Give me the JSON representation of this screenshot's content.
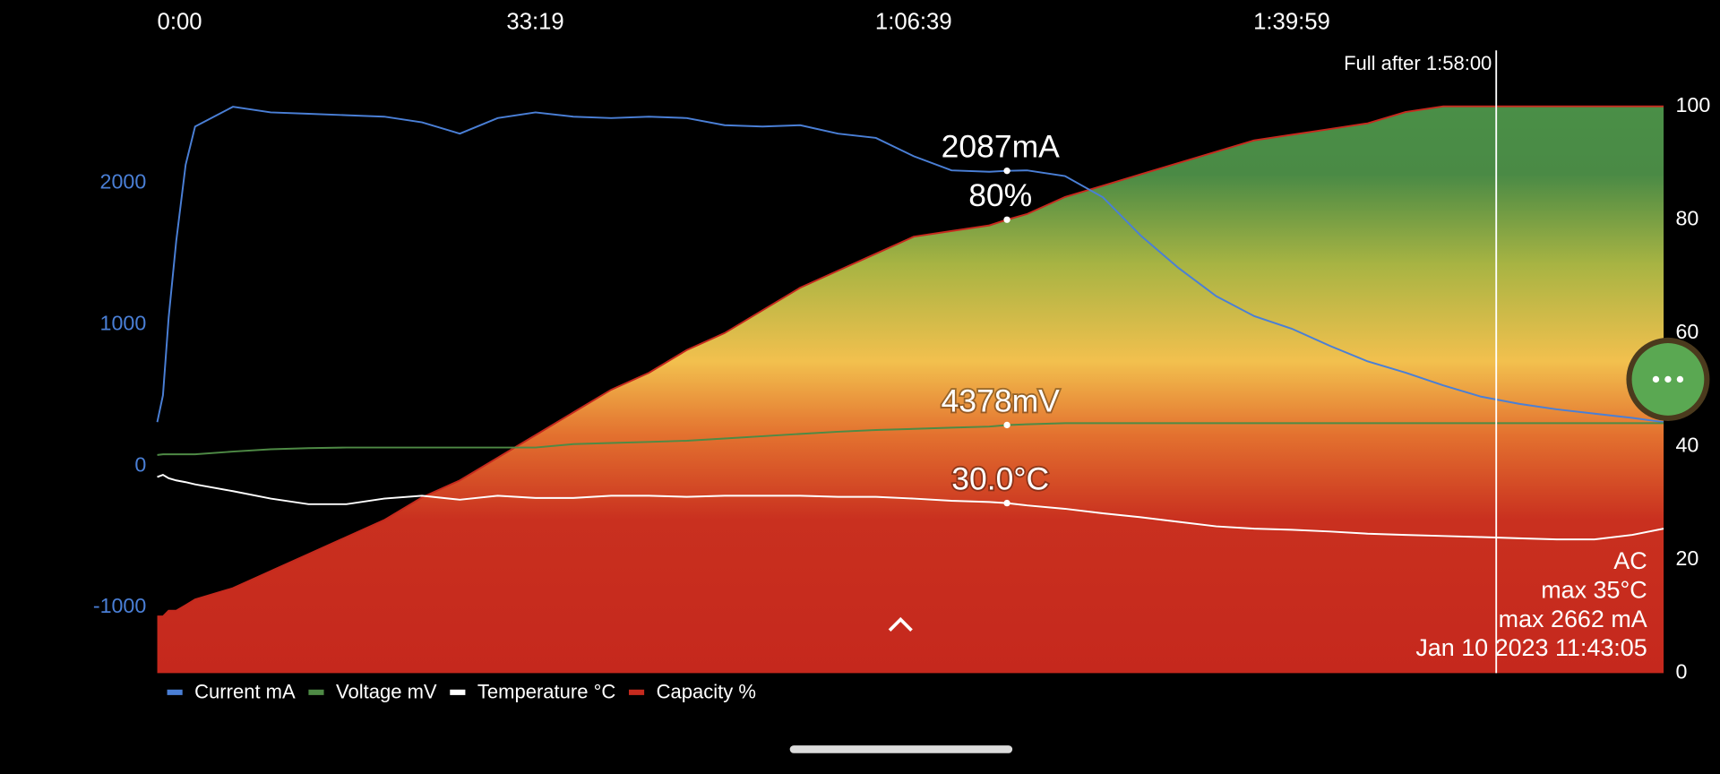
{
  "chart_data": {
    "type": "line",
    "x": [
      0,
      30,
      60,
      100,
      150,
      200,
      400,
      600,
      800,
      1000,
      1200,
      1400,
      1600,
      1800,
      2000,
      2200,
      2400,
      2600,
      2800,
      3000,
      3200,
      3400,
      3600,
      3800,
      4000,
      4200,
      4400,
      4493,
      4600,
      4800,
      5000,
      5200,
      5400,
      5600,
      5800,
      6000,
      6200,
      6400,
      6600,
      6800,
      7000,
      7200,
      7400,
      7600,
      7800,
      7965
    ],
    "xlim": [
      0,
      7965
    ],
    "xticks": [
      {
        "value": 0,
        "label": "0:00"
      },
      {
        "value": 1999,
        "label": "33:19"
      },
      {
        "value": 3999,
        "label": "1:06:39"
      },
      {
        "value": 5999,
        "label": "1:39:59"
      }
    ],
    "ylim": [
      -1465,
      2543
    ],
    "yticks": [
      -1000,
      0,
      1000,
      2000
    ],
    "y2lim": [
      0,
      100
    ],
    "y2ticks": [
      0,
      20,
      40,
      60,
      80,
      100
    ],
    "y_tick_color": "#4a7fd6",
    "series": [
      {
        "name": "Current mA",
        "color": "#4a7fd6",
        "marker_label": "2087mA",
        "values": [
          310,
          500,
          1050,
          1590,
          2130,
          2400,
          2540,
          2500,
          2490,
          2480,
          2470,
          2430,
          2350,
          2460,
          2500,
          2470,
          2460,
          2470,
          2460,
          2410,
          2400,
          2410,
          2350,
          2320,
          2190,
          2090,
          2080,
          2087,
          2090,
          2050,
          1900,
          1630,
          1400,
          1200,
          1060,
          970,
          850,
          740,
          660,
          570,
          490,
          440,
          400,
          370,
          340,
          310
        ]
      },
      {
        "name": "Voltage mV",
        "color": "#4e8a45",
        "ylim": [
          0,
          10000
        ],
        "marker_label": "4378mV",
        "values": [
          3850,
          3860,
          3860,
          3860,
          3860,
          3860,
          3910,
          3950,
          3970,
          3980,
          3980,
          3980,
          3980,
          3980,
          3980,
          4040,
          4060,
          4080,
          4100,
          4140,
          4180,
          4220,
          4260,
          4290,
          4310,
          4330,
          4350,
          4378,
          4390,
          4410,
          4410,
          4410,
          4410,
          4410,
          4410,
          4410,
          4410,
          4410,
          4410,
          4410,
          4410,
          4410,
          4410,
          4410,
          4410,
          4410
        ]
      },
      {
        "name": "Temperature °C",
        "color": "#ffffff",
        "axis": "y2",
        "marker_label": "30.0°C",
        "values": [
          34.6,
          35.0,
          34.4,
          34.0,
          33.7,
          33.3,
          32.1,
          30.8,
          29.8,
          29.8,
          30.8,
          31.3,
          30.6,
          31.3,
          30.9,
          30.9,
          31.3,
          31.3,
          31.1,
          31.3,
          31.3,
          31.3,
          31.1,
          31.1,
          30.8,
          30.4,
          30.2,
          30.0,
          29.6,
          29.0,
          28.2,
          27.5,
          26.7,
          25.9,
          25.5,
          25.3,
          25.0,
          24.6,
          24.4,
          24.2,
          24.0,
          23.8,
          23.6,
          23.6,
          24.4,
          25.5
        ]
      },
      {
        "name": "Capacity %",
        "color": "#c62a1e",
        "axis": "y2",
        "fill": true,
        "marker_label": "80%",
        "values": [
          10,
          10,
          11,
          11,
          12,
          13,
          15,
          18,
          21,
          24,
          27,
          31,
          34,
          38,
          42,
          46,
          50,
          53,
          57,
          60,
          64,
          68,
          71,
          74,
          77,
          78,
          79,
          80,
          81,
          84,
          86,
          88,
          90,
          92,
          94,
          95,
          96,
          97,
          99,
          100,
          100,
          100,
          100,
          100,
          100,
          100
        ]
      }
    ],
    "marker_x": 4493,
    "full_line": {
      "x": 7080,
      "label": "Full after 1:58:00"
    },
    "info": [
      "AC",
      "max 35°C",
      "max 2662 mA",
      "Jan 10 2023 11:43:05"
    ]
  }
}
